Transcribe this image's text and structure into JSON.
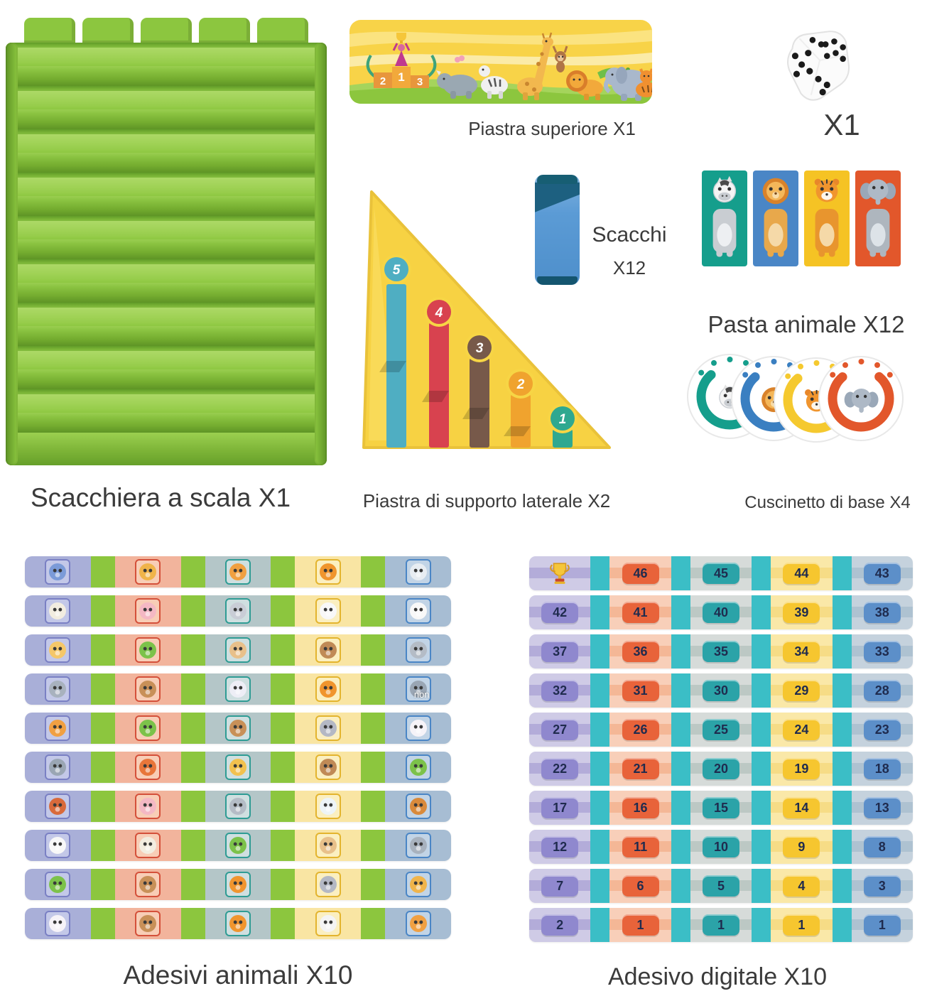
{
  "labels": {
    "board": "Scacchiera a scala X1",
    "top_plate": "Piastra superiore X1",
    "dice_count": "X1",
    "chess_name": "Scacchi",
    "chess_count": "X12",
    "side_plate": "Piastra di supporto laterale X2",
    "animal_pasta": "Pasta animale X12",
    "base_cushion": "Cuscinetto di base X4",
    "animal_stickers": "Adesivi animali X10",
    "digital_stickers": "Adesivo digitale X10"
  },
  "top_plate": {
    "podium_numbers": [
      "2",
      "1",
      "3"
    ],
    "animals": [
      "rhino",
      "zebra",
      "giraffe",
      "monkey",
      "lion",
      "crocodile",
      "elephant",
      "tiger"
    ]
  },
  "side_plate": {
    "bar_numbers": [
      "5",
      "4",
      "3",
      "2",
      "1"
    ],
    "bar_colors": [
      "#4FAEC2",
      "#D8424F",
      "#77594A",
      "#F0A32E",
      "#2FA890"
    ]
  },
  "pasta_cards": [
    {
      "animal": "zebra",
      "color": "#159E8C"
    },
    {
      "animal": "lion",
      "color": "#4A86C6"
    },
    {
      "animal": "tiger",
      "color": "#F5C324"
    },
    {
      "animal": "elephant",
      "color": "#E2572B"
    }
  ],
  "cushions": [
    {
      "animal": "zebra",
      "color": "#159E8C"
    },
    {
      "animal": "lion",
      "color": "#3A7FC1"
    },
    {
      "animal": "tiger",
      "color": "#F5C92F"
    },
    {
      "animal": "elephant",
      "color": "#E2572B"
    }
  ],
  "animal_strips": {
    "rows": [
      [
        "peacock",
        "giraffe",
        "lion",
        "tiger",
        "husky"
      ],
      [
        "owl",
        "pig",
        "goat",
        "panda",
        "panda"
      ],
      [
        "chick",
        "frog",
        "dog",
        "monkey",
        "koala"
      ],
      [
        "raccoon",
        "deer",
        "mouse",
        "tiger",
        "wolf"
      ],
      [
        "lion",
        "frog",
        "deer",
        "donkey",
        "rabbit"
      ],
      [
        "wolf",
        "fox",
        "duck",
        "monkey",
        "frog"
      ],
      [
        "red-panda",
        "pig",
        "koala",
        "polar-bear",
        "squirrel"
      ],
      [
        "panda",
        "owl",
        "frog",
        "dog",
        "raccoon"
      ],
      [
        "frog",
        "deer",
        "tiger",
        "donkey",
        "giraffe"
      ],
      [
        "rabbit",
        "deer",
        "tiger",
        "cow",
        "lion"
      ]
    ],
    "watermark": {
      "text": "non",
      "row": 4,
      "col": 5
    },
    "segment_colors": [
      "#A9AFD8",
      "#F2B49C",
      "#B4C6C8",
      "#F9E5A3",
      "#A7BDD3"
    ],
    "spacer_color": "#8CC63E",
    "tile_border_colors": [
      "#7A80C4",
      "#D4503A",
      "#2E9C94",
      "#E3B42E",
      "#4A86C6"
    ],
    "tile_bg_colors": [
      "#C3C8E8",
      "#F8CDB6",
      "#CFDFE0",
      "#FBEFC0",
      "#C2D4E6"
    ]
  },
  "number_strips": {
    "rows": [
      [
        "trophy",
        "46",
        "45",
        "44",
        "43"
      ],
      [
        "42",
        "41",
        "40",
        "39",
        "38"
      ],
      [
        "37",
        "36",
        "35",
        "34",
        "33"
      ],
      [
        "32",
        "31",
        "30",
        "29",
        "28"
      ],
      [
        "27",
        "26",
        "25",
        "24",
        "23"
      ],
      [
        "22",
        "21",
        "20",
        "19",
        "18"
      ],
      [
        "17",
        "16",
        "15",
        "14",
        "13"
      ],
      [
        "12",
        "11",
        "10",
        "9",
        "8"
      ],
      [
        "7",
        "6",
        "5",
        "4",
        "3"
      ],
      [
        "2",
        "1",
        "1",
        "1",
        "1"
      ]
    ],
    "cell_colors": [
      "#CFCBE6",
      "#F8CFB9",
      "#D6DBD9",
      "#FAE8A8",
      "#C5D2DD"
    ],
    "band_colors": [
      "#B3ACD9",
      "#F4B796",
      "#BCC8C4",
      "#F6DC86",
      "#AEC2D1"
    ],
    "badge_colors": [
      "#8F88CE",
      "#E8633A",
      "#2BA3A8",
      "#F6C62F",
      "#5C8FC9"
    ],
    "separator_color": "#3BBEC6"
  },
  "animal_colors": {
    "peacock": "#7B9BD8",
    "giraffe": "#F0B44A",
    "lion": "#F0A042",
    "tiger": "#F0952E",
    "husky": "#E8EDF2",
    "owl": "#F2EDE0",
    "pig": "#F4B8C4",
    "goat": "#C9CDD6",
    "panda": "#F8F8F8",
    "chick": "#F5C769",
    "frog": "#7CC24A",
    "dog": "#E8C08A",
    "monkey": "#C08A56",
    "koala": "#B4BCC6",
    "raccoon": "#A8B2BE",
    "deer": "#C89058",
    "mouse": "#EEEEF6",
    "wolf": "#9AA6B4",
    "fox": "#E8763A",
    "duck": "#F2C14E",
    "red-panda": "#D96A3B",
    "polar-bear": "#EDF4F8",
    "squirrel": "#D98A3B",
    "donkey": "#B4B8C4",
    "rabbit": "#F6F3F8",
    "cow": "#F4F4F4"
  },
  "palette": {
    "board-green": "#8CC63F",
    "board-dark": "#5E9426",
    "banner-yellow": "#F8D348",
    "triangle-yellow": "#F7D243",
    "chess-blue": "#5B9BD5",
    "chess-dark": "#1D6080",
    "strip-green": "#8CC63E",
    "sep-cyan": "#3BBEC6",
    "label": "#3B3B3B"
  }
}
